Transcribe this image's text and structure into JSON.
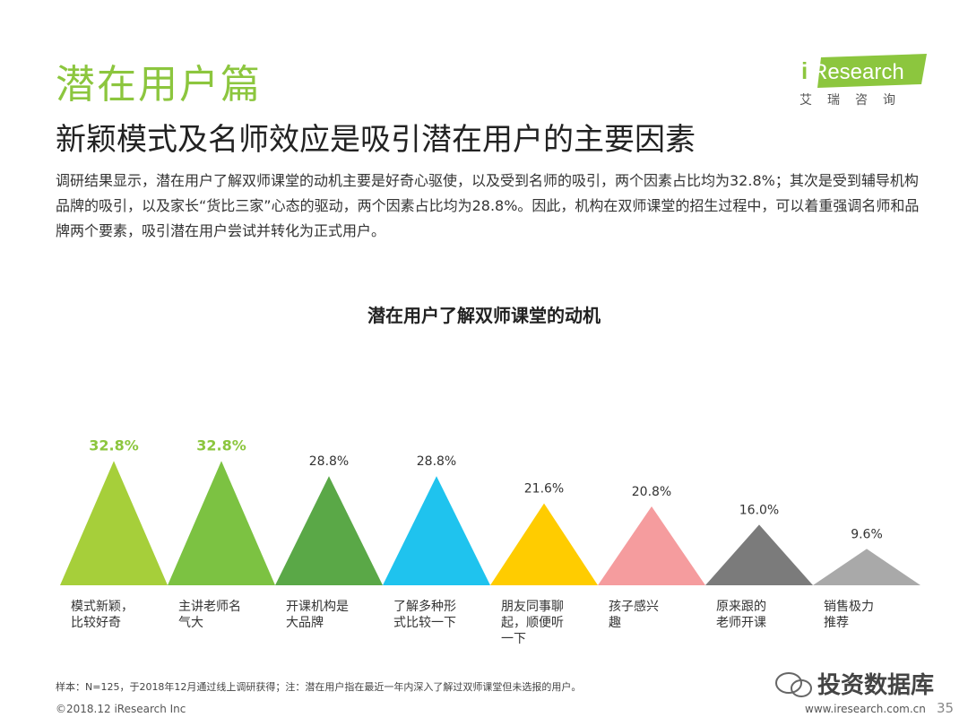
{
  "header": {
    "title": "潜在用户篇",
    "subtitle": "新颖模式及名师效应是吸引潜在用户的主要因素",
    "logo_text": "iResearch",
    "logo_cn": "艾瑞咨询"
  },
  "body": {
    "paragraph": "调研结果显示，潜在用户了解双师课堂的动机主要是好奇心驱使，以及受到名师的吸引，两个因素占比均为32.8%；其次是受到辅导机构品牌的吸引，以及家长“货比三家”心态的驱动，两个因素占比均为28.8%。因此，机构在双师课堂的招生过程中，可以着重强调名师和品牌两个要素，吸引潜在用户尝试并转化为正式用户。"
  },
  "chart_data": {
    "type": "bar",
    "title": "潜在用户了解双师课堂的动机",
    "categories": [
      [
        "模式新颖，",
        "比较好奇"
      ],
      [
        "主讲老师名",
        "气大"
      ],
      [
        "开课机构是",
        "大品牌"
      ],
      [
        "了解多种形",
        "式比较一下"
      ],
      [
        "朋友同事聊",
        "起，顺便听",
        "一下"
      ],
      [
        "孩子感兴",
        "趣"
      ],
      [
        "原来跟的",
        "老师开课"
      ],
      [
        "销售极力",
        "推荐"
      ]
    ],
    "values": [
      32.8,
      32.8,
      28.8,
      28.8,
      21.6,
      20.8,
      16.0,
      9.6
    ],
    "value_labels": [
      "32.8%",
      "32.8%",
      "28.8%",
      "28.8%",
      "21.6%",
      "20.8%",
      "16.0%",
      "9.6%"
    ],
    "colors": [
      "#a6cf3a",
      "#7cc242",
      "#5aa847",
      "#1fc3ee",
      "#ffcc00",
      "#f59c9e",
      "#7b7b7b",
      "#a9a9a9"
    ],
    "highlight": [
      true,
      true,
      false,
      false,
      false,
      false,
      false,
      false
    ],
    "highlight_color": "#8cc63e",
    "ylim": [
      0,
      35
    ]
  },
  "footer": {
    "note": "样本：N=125，于2018年12月通过线上调研获得；注：潜在用户指在最近一年内深入了解过双师课堂但未选报的用户。",
    "copyright": "©2018.12 iResearch Inc",
    "site": "www.iresearch.com.cn",
    "page": "35",
    "watermark": "投资数据库"
  }
}
